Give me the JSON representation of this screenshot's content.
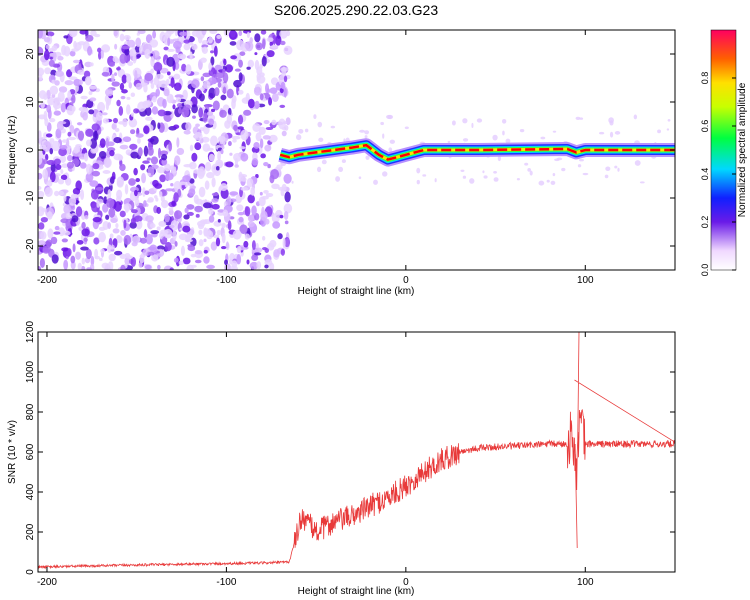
{
  "figure": {
    "title": "S206.2025.290.22.03.G23"
  },
  "colors": {
    "snr_line": "#e83a3a",
    "spectrum_line": "#ff0000",
    "axis": "#000000"
  },
  "chart_data": [
    {
      "type": "heatmap",
      "name": "spectrogram",
      "xlabel": "Height of straight line (km)",
      "ylabel": "Frequency (Hz)",
      "xlim": [
        -205,
        150
      ],
      "ylim": [
        -25,
        25
      ],
      "xticks": [
        -200,
        -100,
        0,
        100
      ],
      "yticks": [
        -20,
        -10,
        0,
        10,
        20
      ],
      "signal_onset_km": -70,
      "dominant_frequency_trace": [
        {
          "x": -70,
          "y": -1
        },
        {
          "x": -65,
          "y": -1.5
        },
        {
          "x": -60,
          "y": -1
        },
        {
          "x": -50,
          "y": -0.5
        },
        {
          "x": -40,
          "y": 0
        },
        {
          "x": -30,
          "y": 0.5
        },
        {
          "x": -22,
          "y": 1
        },
        {
          "x": -15,
          "y": -1
        },
        {
          "x": -10,
          "y": -2
        },
        {
          "x": -5,
          "y": -1.5
        },
        {
          "x": 0,
          "y": -1
        },
        {
          "x": 5,
          "y": -0.5
        },
        {
          "x": 10,
          "y": 0
        },
        {
          "x": 40,
          "y": 0
        },
        {
          "x": 90,
          "y": 0.2
        },
        {
          "x": 95,
          "y": -0.5
        },
        {
          "x": 100,
          "y": 0
        },
        {
          "x": 150,
          "y": 0
        }
      ],
      "colorbar": {
        "label": "Normalized spectral amplitude",
        "range": [
          0,
          1
        ],
        "ticks": [
          0.0,
          0.2,
          0.4,
          0.6,
          0.8
        ],
        "tick_labels": [
          "0.0",
          "0.2",
          "0.4",
          "0.6",
          "0.8"
        ]
      }
    },
    {
      "type": "line",
      "name": "snr",
      "xlabel": "Height of straight line (km)",
      "ylabel": "SNR (10 * v/v)",
      "xlim": [
        -205,
        150
      ],
      "ylim": [
        0,
        1200
      ],
      "xticks": [
        -200,
        -100,
        0,
        100
      ],
      "yticks": [
        0,
        200,
        400,
        600,
        800,
        1000,
        1200
      ],
      "series": [
        {
          "name": "SNR",
          "points": [
            {
              "x": -205,
              "y": 25
            },
            {
              "x": -180,
              "y": 30
            },
            {
              "x": -150,
              "y": 35
            },
            {
              "x": -120,
              "y": 40
            },
            {
              "x": -100,
              "y": 42
            },
            {
              "x": -80,
              "y": 45
            },
            {
              "x": -65,
              "y": 50
            },
            {
              "x": -58,
              "y": 280
            },
            {
              "x": -50,
              "y": 200
            },
            {
              "x": -40,
              "y": 250
            },
            {
              "x": -30,
              "y": 280
            },
            {
              "x": -20,
              "y": 330
            },
            {
              "x": -10,
              "y": 370
            },
            {
              "x": 0,
              "y": 430
            },
            {
              "x": 10,
              "y": 500
            },
            {
              "x": 20,
              "y": 560
            },
            {
              "x": 30,
              "y": 600
            },
            {
              "x": 40,
              "y": 620
            },
            {
              "x": 60,
              "y": 630
            },
            {
              "x": 80,
              "y": 640
            },
            {
              "x": 90,
              "y": 640
            },
            {
              "x": 93,
              "y": 700
            },
            {
              "x": 95,
              "y": 500
            },
            {
              "x": 97,
              "y": 750
            },
            {
              "x": 100,
              "y": 640
            },
            {
              "x": 120,
              "y": 640
            },
            {
              "x": 150,
              "y": 640
            }
          ],
          "spikes": [
            {
              "x": 94,
              "y": 960
            },
            {
              "x": 95.5,
              "y": 120
            },
            {
              "x": 96.5,
              "y": 1200
            }
          ]
        }
      ]
    }
  ]
}
